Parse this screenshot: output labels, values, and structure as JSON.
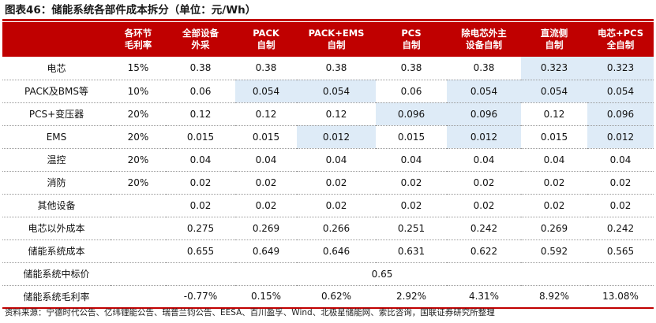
{
  "title": "图表46：储能系统各部件成本拆分（单位：元/Wh）",
  "header": [
    "",
    "各环节\n毛利率",
    "全部设备\n外采",
    "PACK\n自制",
    "PACK+EMS\n自制",
    "PCS\n自制",
    "除电芯外主\n设备自制",
    "直流侧\n自制",
    "电芯+PCS\n全自制"
  ],
  "rows": [
    {
      "cells": [
        "电芯",
        "15%",
        "0.38",
        "0.38",
        "0.38",
        "0.38",
        "0.38",
        "0.323",
        "0.323"
      ],
      "highlight": [
        7,
        8
      ]
    },
    {
      "cells": [
        "PACK及BMS等",
        "10%",
        "0.06",
        "0.054",
        "0.054",
        "0.06",
        "0.054",
        "0.054",
        "0.054"
      ],
      "highlight": [
        3,
        4,
        6,
        7,
        8
      ]
    },
    {
      "cells": [
        "PCS+变压器",
        "20%",
        "0.12",
        "0.12",
        "0.12",
        "0.096",
        "0.096",
        "0.12",
        "0.096"
      ],
      "highlight": [
        5,
        6,
        8
      ]
    },
    {
      "cells": [
        "EMS",
        "20%",
        "0.015",
        "0.015",
        "0.012",
        "0.015",
        "0.012",
        "0.015",
        "0.012"
      ],
      "highlight": [
        4,
        6,
        8
      ]
    },
    {
      "cells": [
        "温控",
        "20%",
        "0.04",
        "0.04",
        "0.04",
        "0.04",
        "0.04",
        "0.04",
        "0.04"
      ],
      "highlight": []
    },
    {
      "cells": [
        "消防",
        "20%",
        "0.02",
        "0.02",
        "0.02",
        "0.02",
        "0.02",
        "0.02",
        "0.02"
      ],
      "highlight": []
    },
    {
      "cells": [
        "其他设备",
        "",
        "0.02",
        "0.02",
        "0.02",
        "0.02",
        "0.02",
        "0.02",
        "0.02"
      ],
      "highlight": []
    },
    {
      "cells": [
        "电芯以外成本",
        "",
        "0.275",
        "0.269",
        "0.266",
        "0.251",
        "0.242",
        "0.269",
        "0.242"
      ],
      "highlight": []
    },
    {
      "cells": [
        "储能系统成本",
        "",
        "0.655",
        "0.649",
        "0.646",
        "0.631",
        "0.622",
        "0.592",
        "0.565"
      ],
      "highlight": []
    },
    {
      "merged": true,
      "label": "储能系统中标价",
      "value": "0.65"
    },
    {
      "cells": [
        "储能系统毛利率",
        "",
        "-0.77%",
        "0.15%",
        "0.62%",
        "2.92%",
        "4.31%",
        "8.92%",
        "13.08%"
      ],
      "highlight": []
    }
  ],
  "source": "资料来源：宁德时代公告、亿纬锂能公告、瑞普兰钧公告、EESA、百川盈孚、Wind、北极星储能网、索比咨询，国联证券研究所整理",
  "colors": {
    "accent": "#c00000",
    "highlight": "#deebf7"
  }
}
